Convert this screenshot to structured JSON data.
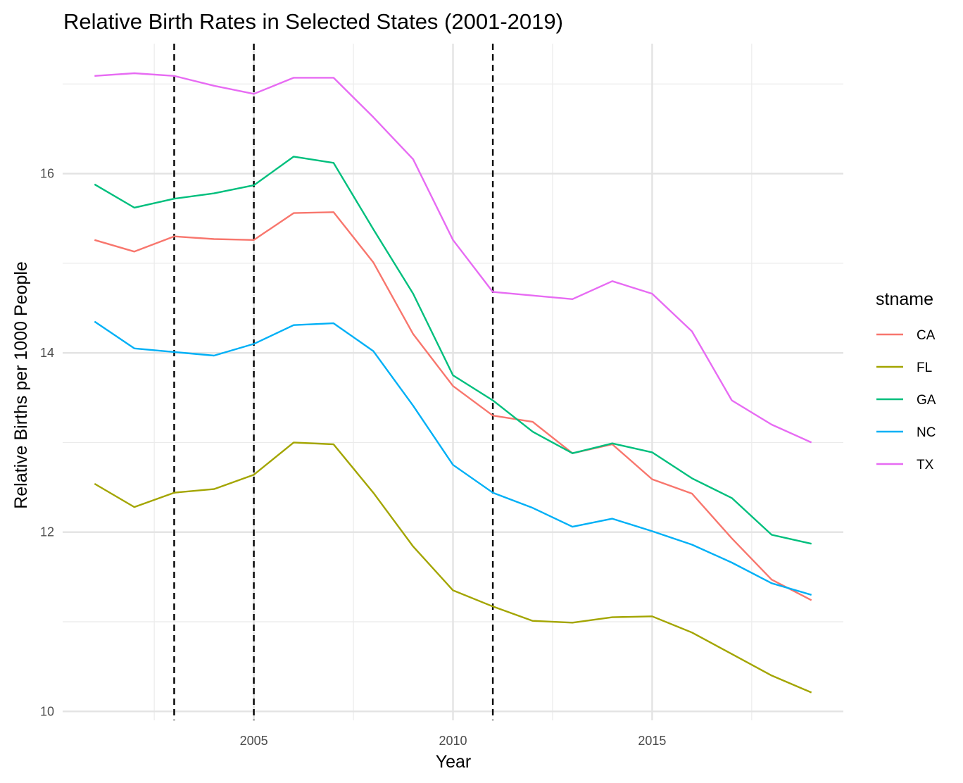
{
  "chart_data": {
    "type": "line",
    "title": "Relative Birth Rates in Selected States (2001-2019)",
    "xlabel": "Year",
    "ylabel": "Relative Births per 1000 People",
    "xlim": [
      2000.2,
      2019.8
    ],
    "ylim": [
      9.9,
      17.45
    ],
    "x_ticks": [
      2005,
      2010,
      2015
    ],
    "y_ticks": [
      10,
      12,
      14,
      16
    ],
    "x_minor": [
      2002.5,
      2007.5,
      2012.5,
      2017.5
    ],
    "y_minor": [
      11,
      13,
      15,
      17
    ],
    "grid": true,
    "legend": {
      "title": "stname",
      "position": "right"
    },
    "vlines": [
      2003,
      2005,
      2011
    ],
    "x": [
      2001,
      2002,
      2003,
      2004,
      2005,
      2006,
      2007,
      2008,
      2009,
      2010,
      2011,
      2012,
      2013,
      2014,
      2015,
      2016,
      2017,
      2018,
      2019
    ],
    "series": [
      {
        "name": "CA",
        "color": "#F8766D",
        "values": [
          15.26,
          15.13,
          15.3,
          15.27,
          15.26,
          15.56,
          15.57,
          15.01,
          14.21,
          13.63,
          13.3,
          13.23,
          12.88,
          12.98,
          12.59,
          12.43,
          11.93,
          11.47,
          11.24
        ]
      },
      {
        "name": "FL",
        "color": "#A3A500",
        "values": [
          12.54,
          12.28,
          12.44,
          12.48,
          12.64,
          13.0,
          12.98,
          12.44,
          11.84,
          11.35,
          11.17,
          11.01,
          10.99,
          11.05,
          11.06,
          10.88,
          10.64,
          10.4,
          10.21
        ]
      },
      {
        "name": "GA",
        "color": "#00BF7D",
        "values": [
          15.88,
          15.62,
          15.72,
          15.78,
          15.87,
          16.19,
          16.12,
          15.38,
          14.66,
          13.75,
          13.47,
          13.12,
          12.88,
          12.99,
          12.89,
          12.6,
          12.38,
          11.97,
          11.87
        ]
      },
      {
        "name": "NC",
        "color": "#00B0F6",
        "values": [
          14.35,
          14.05,
          14.01,
          13.97,
          14.1,
          14.31,
          14.33,
          14.02,
          13.41,
          12.75,
          12.44,
          12.27,
          12.06,
          12.15,
          12.01,
          11.86,
          11.66,
          11.43,
          11.3
        ]
      },
      {
        "name": "TX",
        "color": "#E76BF3",
        "values": [
          17.09,
          17.12,
          17.09,
          16.98,
          16.89,
          17.07,
          17.07,
          16.63,
          16.16,
          15.26,
          14.68,
          14.64,
          14.6,
          14.8,
          14.66,
          14.24,
          13.47,
          13.2,
          13.0
        ]
      }
    ]
  }
}
